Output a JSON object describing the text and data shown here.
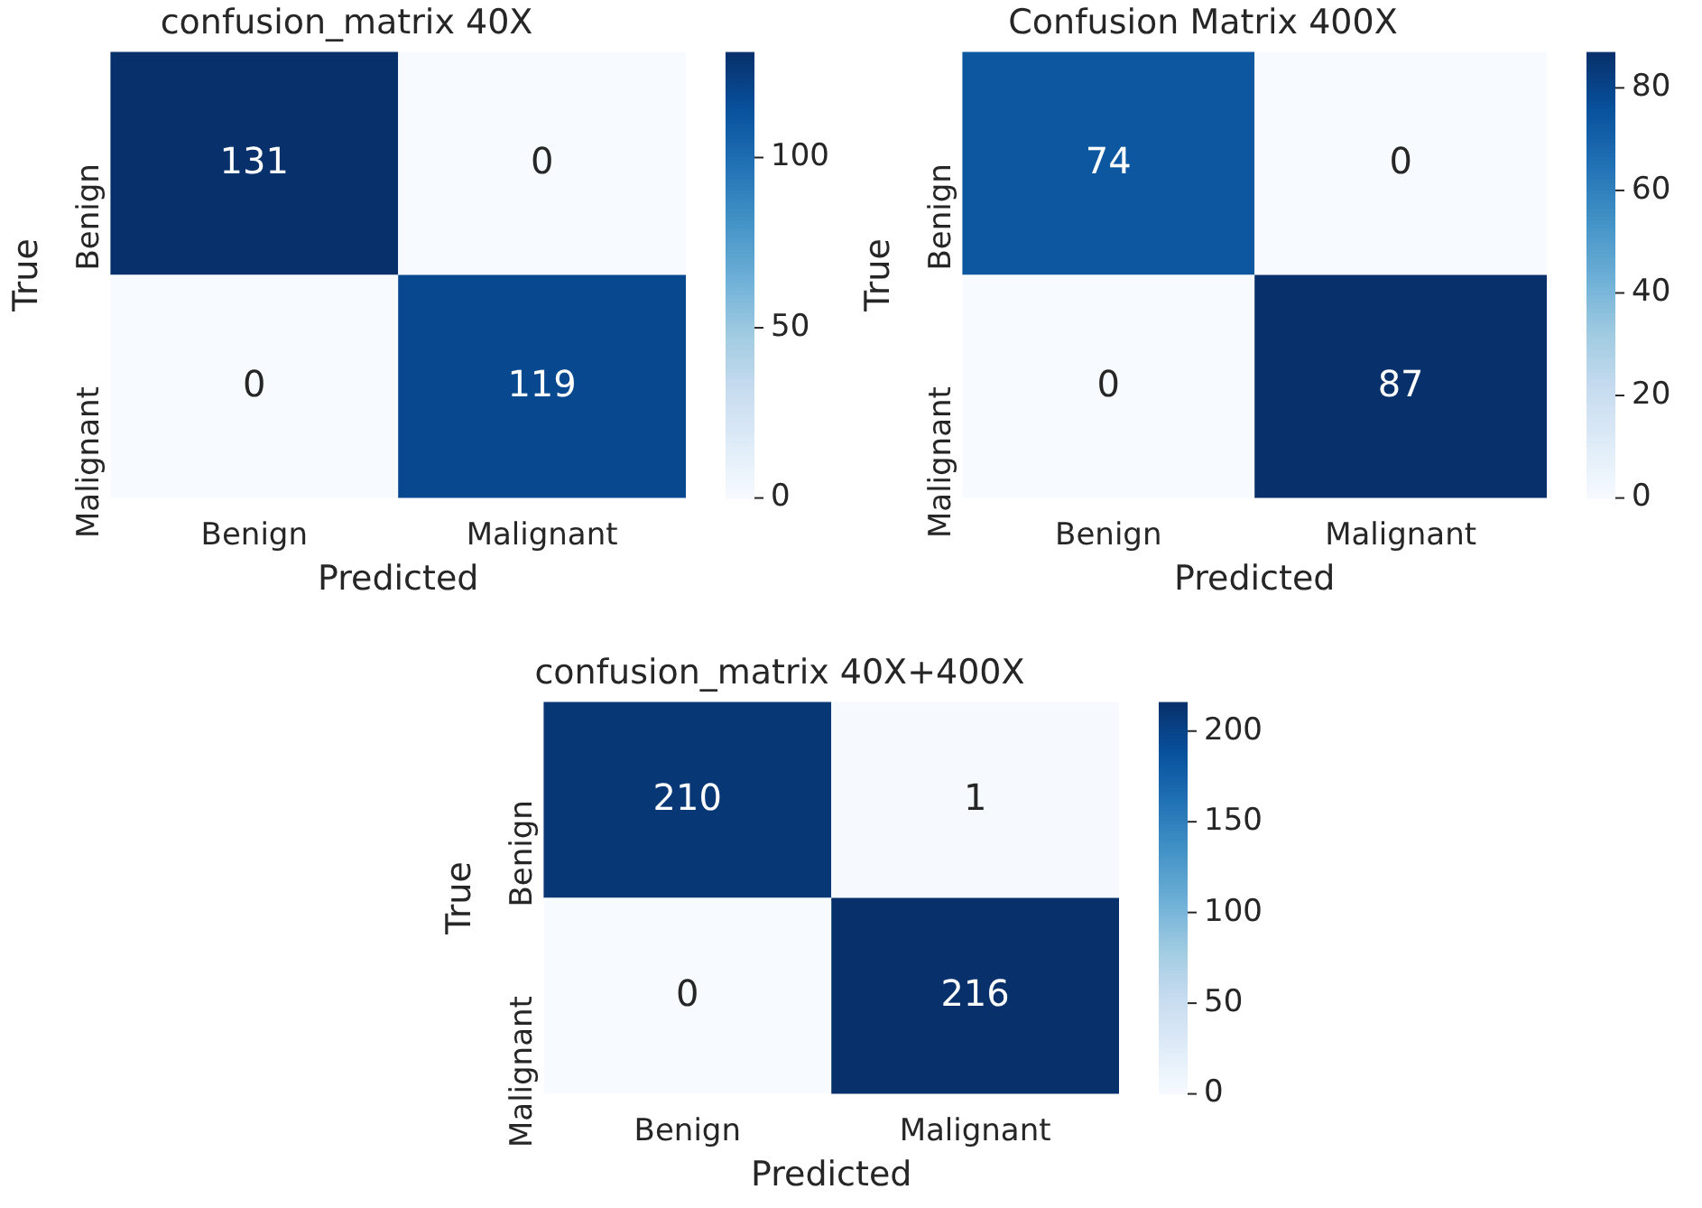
{
  "chart_data": [
    {
      "type": "heatmap",
      "title": "confusion_matrix 40X",
      "xlabel": "Predicted",
      "ylabel": "True",
      "categories": [
        "Benign",
        "Malignant"
      ],
      "y_categories": [
        "Benign",
        "Malignant"
      ],
      "cells": [
        [
          131,
          0
        ],
        [
          0,
          119
        ]
      ],
      "data_labels": true,
      "clim": [
        0,
        131
      ],
      "cticks": [
        0,
        50,
        100
      ]
    },
    {
      "type": "heatmap",
      "title": "Confusion Matrix 400X",
      "xlabel": "Predicted",
      "ylabel": "True",
      "categories": [
        "Benign",
        "Malignant"
      ],
      "y_categories": [
        "Benign",
        "Malignant"
      ],
      "cells": [
        [
          74,
          0
        ],
        [
          0,
          87
        ]
      ],
      "data_labels": true,
      "clim": [
        0,
        87
      ],
      "cticks": [
        0,
        20,
        40,
        60,
        80
      ]
    },
    {
      "type": "heatmap",
      "title": "confusion_matrix 40X+400X",
      "xlabel": "Predicted",
      "ylabel": "True",
      "categories": [
        "Benign",
        "Malignant"
      ],
      "y_categories": [
        "Benign",
        "Malignant"
      ],
      "cells": [
        [
          210,
          1
        ],
        [
          0,
          216
        ]
      ],
      "data_labels": true,
      "clim": [
        0,
        216
      ],
      "cticks": [
        0,
        50,
        100,
        150,
        200
      ]
    }
  ]
}
